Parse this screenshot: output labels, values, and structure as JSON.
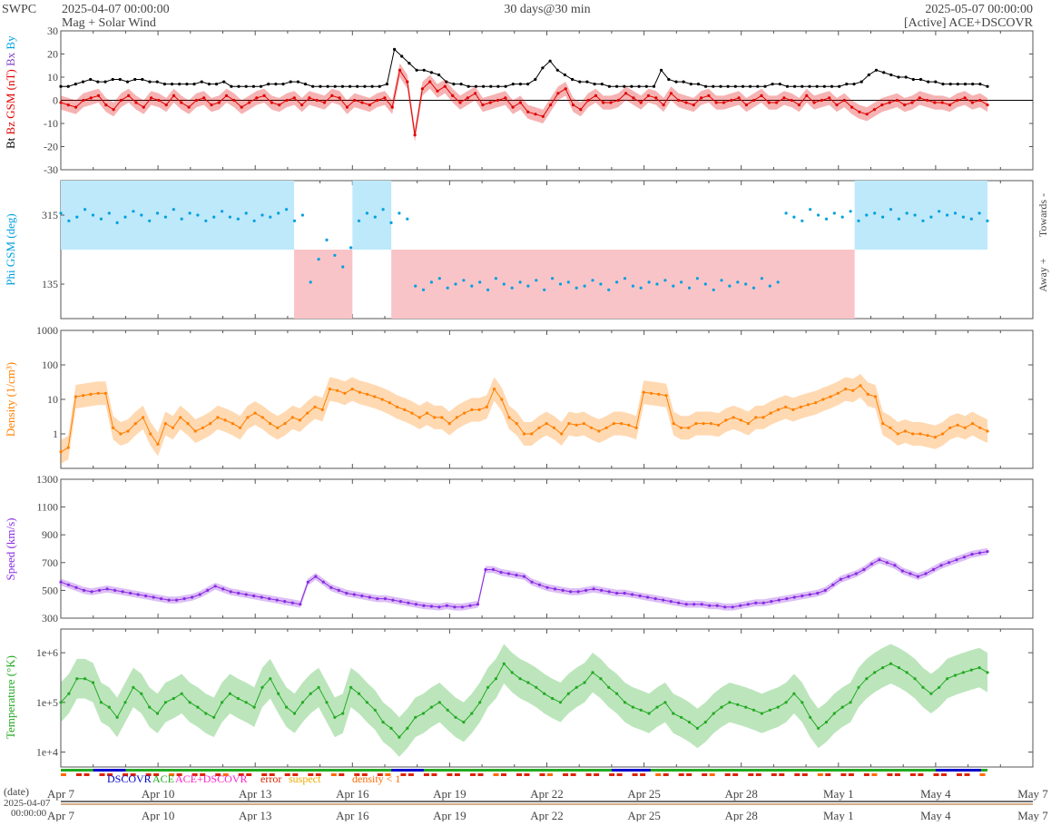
{
  "header": {
    "source": "SWPC",
    "start_time": "2025-04-07 00:00:00",
    "title_line2": "Mag + Solar Wind",
    "span": "30 days@30 min",
    "end_time": "2025-05-07 00:00:00",
    "status": "[Active] ACE+DSCOVR"
  },
  "chart_data": [
    {
      "type": "line",
      "panel": "mag",
      "ylabel_parts": [
        "Bt",
        "Bz GSM (nT)",
        "Bx",
        "By"
      ],
      "ylim": [
        -30,
        30
      ],
      "yticks": [
        -30,
        -20,
        -10,
        0,
        10,
        20,
        30
      ],
      "zero_line": true,
      "colors": {
        "bt": "#000000",
        "bz": "#e00000",
        "bx": "#8040c0",
        "by": "#00a0e0"
      },
      "series": [
        {
          "name": "Bt",
          "color": "#000000",
          "values": [
            6,
            6,
            7,
            8,
            9,
            8,
            8,
            9,
            9,
            8,
            9,
            9,
            8,
            8,
            7,
            7,
            7,
            7,
            7,
            8,
            7,
            7,
            8,
            6,
            6,
            6,
            6,
            6,
            7,
            7,
            7,
            8,
            8,
            7,
            6,
            6,
            6,
            6,
            6,
            6,
            6,
            6,
            6,
            6,
            7,
            22,
            19,
            16,
            13,
            13,
            12,
            11,
            8,
            7,
            7,
            6,
            6,
            6,
            6,
            6,
            6,
            7,
            7,
            7,
            9,
            14,
            17,
            13,
            11,
            9,
            8,
            8,
            7,
            7,
            6,
            6,
            6,
            6,
            6,
            6,
            6,
            13,
            9,
            8,
            8,
            7,
            7,
            6,
            6,
            6,
            6,
            6,
            6,
            6,
            6,
            6,
            7,
            7,
            6,
            6,
            6,
            6,
            6,
            6,
            6,
            6,
            7,
            7,
            8,
            11,
            13,
            12,
            11,
            10,
            10,
            9,
            9,
            8,
            8,
            7,
            7,
            7,
            7,
            7,
            7,
            6
          ]
        },
        {
          "name": "Bz",
          "color": "#e00000",
          "values": [
            -1,
            -2,
            -3,
            0,
            1,
            2,
            -2,
            -4,
            0,
            2,
            -1,
            -3,
            1,
            0,
            -2,
            2,
            -1,
            -3,
            0,
            1,
            -2,
            -1,
            2,
            0,
            -3,
            -1,
            1,
            2,
            -1,
            -2,
            0,
            1,
            -2,
            1,
            0,
            -1,
            2,
            1,
            -3,
            0,
            -1,
            -2,
            0,
            1,
            -3,
            13,
            8,
            -15,
            5,
            8,
            4,
            6,
            2,
            -1,
            1,
            3,
            -2,
            -1,
            0,
            1,
            -3,
            -1,
            -5,
            -6,
            -7,
            -2,
            3,
            5,
            -2,
            -4,
            0,
            2,
            -1,
            -1,
            0,
            3,
            1,
            -1,
            2,
            1,
            -2,
            3,
            0,
            -1,
            -2,
            1,
            2,
            -1,
            -1,
            0,
            1,
            -2,
            0,
            2,
            -1,
            -1,
            1,
            0,
            -2,
            2,
            -1,
            0,
            1,
            -2,
            0,
            -3,
            -5,
            -6,
            -4,
            -2,
            -1,
            0,
            -2,
            -1,
            1,
            0,
            -1,
            -1,
            -2,
            0,
            1,
            -1,
            0,
            -2
          ]
        }
      ]
    },
    {
      "type": "scatter",
      "panel": "phi",
      "ylabel": "Phi GSM (deg)",
      "yticks": [
        135,
        315
      ],
      "ylim": [
        45,
        405
      ],
      "right_labels": [
        "Towards -",
        "Away +"
      ],
      "colors": {
        "towards": "#bde9fa",
        "away": "#f9c4c8",
        "points": "#00a0e0"
      },
      "sectors": [
        {
          "from_day": 0,
          "to_day": 7.2,
          "sector": "towards"
        },
        {
          "from_day": 7.2,
          "to_day": 9.0,
          "sector": "away"
        },
        {
          "from_day": 9.0,
          "to_day": 10.2,
          "sector": "towards"
        },
        {
          "from_day": 10.2,
          "to_day": 24.5,
          "sector": "away"
        },
        {
          "from_day": 24.5,
          "to_day": 28.6,
          "sector": "towards"
        }
      ],
      "values": [
        320,
        300,
        310,
        330,
        315,
        305,
        320,
        295,
        310,
        325,
        315,
        300,
        320,
        310,
        330,
        305,
        320,
        315,
        300,
        310,
        325,
        310,
        305,
        320,
        300,
        315,
        310,
        320,
        330,
        300,
        315,
        140,
        200,
        250,
        210,
        180,
        230,
        300,
        320,
        310,
        330,
        295,
        320,
        305,
        130,
        120,
        140,
        150,
        125,
        135,
        145,
        130,
        140,
        120,
        150,
        135,
        125,
        140,
        130,
        145,
        120,
        150,
        135,
        140,
        125,
        130,
        145,
        135,
        120,
        140,
        150,
        130,
        125,
        140,
        135,
        145,
        130,
        140,
        125,
        150,
        135,
        120,
        145,
        130,
        140,
        135,
        125,
        150,
        130,
        140,
        320,
        310,
        300,
        330,
        315,
        305,
        320,
        310,
        325,
        300,
        315,
        320,
        310,
        330,
        305,
        320,
        315,
        300,
        310,
        325,
        315,
        320,
        310,
        305,
        320,
        300
      ]
    },
    {
      "type": "line",
      "panel": "density",
      "ylabel": "Density (1/cm³)",
      "yscale": "log",
      "ylim": [
        0.1,
        1000
      ],
      "ytick_labels": [
        "1",
        "10",
        "100",
        "1000"
      ],
      "color": "#ff8000",
      "values": [
        0.3,
        0.4,
        12,
        13,
        14,
        15,
        15,
        1.5,
        1,
        1.2,
        2,
        3,
        1,
        0.5,
        2,
        1.5,
        3,
        2,
        1.2,
        1.5,
        2,
        3,
        2.5,
        2,
        1.5,
        3,
        4,
        3,
        2,
        1.5,
        2,
        3,
        2.5,
        4,
        6,
        5,
        20,
        18,
        15,
        20,
        16,
        14,
        12,
        10,
        8,
        6,
        5,
        4,
        3,
        4,
        3,
        3,
        2,
        3,
        4,
        5,
        5,
        6,
        20,
        10,
        3,
        2,
        1,
        1,
        1.5,
        2,
        1.5,
        1,
        2,
        1.8,
        2,
        1.5,
        1.2,
        1.5,
        2,
        2,
        1.8,
        1.5,
        16,
        15,
        14,
        13,
        2,
        1.5,
        1.5,
        2,
        2,
        2,
        1.8,
        2.5,
        3,
        2.5,
        2,
        3,
        3,
        4,
        5,
        6,
        5,
        6,
        7,
        8,
        10,
        12,
        15,
        20,
        18,
        25,
        14,
        12,
        2,
        1.5,
        1,
        1.2,
        1,
        1,
        0.9,
        0.8,
        1,
        1.5,
        1.8,
        1.5,
        2,
        1.5,
        1.2
      ]
    },
    {
      "type": "line",
      "panel": "speed",
      "ylabel": "Speed (km/s)",
      "ylim": [
        300,
        1300
      ],
      "yticks": [
        300,
        500,
        700,
        900,
        1100,
        1300
      ],
      "color": "#8a2be2",
      "values": [
        560,
        540,
        520,
        500,
        490,
        500,
        510,
        500,
        490,
        480,
        470,
        460,
        450,
        440,
        430,
        430,
        440,
        450,
        470,
        500,
        530,
        510,
        490,
        480,
        470,
        460,
        450,
        440,
        430,
        420,
        410,
        400,
        560,
        600,
        560,
        520,
        500,
        480,
        470,
        460,
        450,
        440,
        440,
        430,
        420,
        410,
        400,
        390,
        385,
        380,
        390,
        380,
        380,
        390,
        400,
        650,
        650,
        630,
        620,
        610,
        600,
        560,
        540,
        520,
        510,
        500,
        490,
        490,
        500,
        510,
        500,
        490,
        480,
        480,
        470,
        460,
        450,
        440,
        430,
        420,
        410,
        400,
        400,
        400,
        390,
        390,
        380,
        380,
        390,
        400,
        410,
        410,
        420,
        430,
        440,
        450,
        460,
        470,
        480,
        500,
        540,
        580,
        600,
        620,
        650,
        690,
        720,
        700,
        680,
        640,
        620,
        600,
        620,
        650,
        680,
        700,
        720,
        740,
        760,
        770,
        780
      ]
    },
    {
      "type": "line",
      "panel": "temperature",
      "ylabel": "Temperature (°K)",
      "yscale": "log",
      "ylim": [
        5000,
        3000000
      ],
      "ytick_labels": [
        "1e+4",
        "1e+5",
        "1e+6"
      ],
      "color": "#22aa22",
      "values": [
        100000,
        150000,
        300000,
        300000,
        250000,
        100000,
        80000,
        50000,
        100000,
        200000,
        150000,
        80000,
        60000,
        100000,
        120000,
        150000,
        100000,
        80000,
        60000,
        50000,
        100000,
        150000,
        120000,
        100000,
        80000,
        200000,
        300000,
        150000,
        80000,
        60000,
        100000,
        150000,
        200000,
        100000,
        50000,
        60000,
        200000,
        150000,
        100000,
        70000,
        40000,
        30000,
        20000,
        30000,
        50000,
        60000,
        80000,
        100000,
        70000,
        50000,
        40000,
        60000,
        100000,
        200000,
        300000,
        600000,
        400000,
        300000,
        250000,
        200000,
        150000,
        120000,
        100000,
        150000,
        200000,
        250000,
        400000,
        300000,
        200000,
        150000,
        100000,
        80000,
        70000,
        60000,
        80000,
        100000,
        60000,
        50000,
        40000,
        30000,
        40000,
        60000,
        80000,
        100000,
        90000,
        80000,
        70000,
        60000,
        70000,
        80000,
        100000,
        150000,
        100000,
        50000,
        30000,
        40000,
        60000,
        80000,
        100000,
        200000,
        300000,
        400000,
        500000,
        600000,
        500000,
        400000,
        300000,
        200000,
        150000,
        200000,
        300000,
        350000,
        400000,
        450000,
        500000,
        400000
      ]
    }
  ],
  "status_strip": {
    "legend": [
      {
        "label": "DSCOVR",
        "color": "#0000cc"
      },
      {
        "label": "ACE",
        "color": "#22aa22"
      },
      {
        "label": "ACE+DSCOVR",
        "color": "#ff22cc"
      },
      {
        "label": "error",
        "color": "#dd2200"
      },
      {
        "label": "suspect",
        "color": "#eeaa00"
      },
      {
        "label": "density < 1",
        "color": "#ff6a00"
      }
    ]
  },
  "x_axis": {
    "ticks": [
      "Apr 7",
      "Apr 10",
      "Apr 13",
      "Apr 16",
      "Apr 19",
      "Apr 22",
      "Apr 25",
      "Apr 28",
      "May 1",
      "May 4",
      "May 7"
    ],
    "date_label": "(date)",
    "timeline_start": "2025-04-07",
    "timeline_time": "00:00:00"
  }
}
